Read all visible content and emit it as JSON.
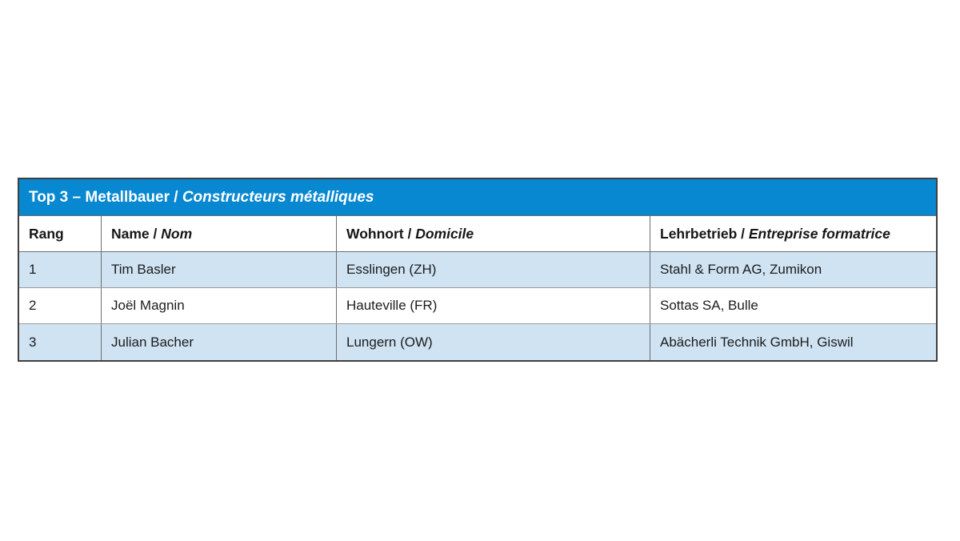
{
  "table": {
    "title": {
      "de": "Top 3 – Metallbauer",
      "sep": " / ",
      "fr": "Constructeurs métalliques"
    },
    "columns": {
      "rang": {
        "de": "Rang",
        "sep": "",
        "fr": ""
      },
      "name": {
        "de": "Name",
        "sep": " / ",
        "fr": "Nom"
      },
      "wohnort": {
        "de": "Wohnort",
        "sep": " / ",
        "fr": "Domicile"
      },
      "lehrbetrieb": {
        "de": "Lehrbetrieb",
        "sep": " / ",
        "fr": "Entreprise formatrice"
      }
    },
    "rows": [
      {
        "rank": "1",
        "name": "Tim Basler",
        "domicile": "Esslingen (ZH)",
        "company": "Stahl & Form AG, Zumikon"
      },
      {
        "rank": "2",
        "name": "Joël Magnin",
        "domicile": "Hauteville (FR)",
        "company": "Sottas SA, Bulle"
      },
      {
        "rank": "3",
        "name": "Julian Bacher",
        "domicile": "Lungern (OW)",
        "company": "Abächerli Technik GmbH, Giswil"
      }
    ],
    "colors": {
      "title_bar_bg": "#0888d1",
      "title_text": "#ffffff",
      "shaded_row_bg": "#cfe3f3",
      "body_text": "#1c1c1c",
      "outer_border": "#3f3f3f",
      "inner_border": "#6e6e6e"
    }
  }
}
